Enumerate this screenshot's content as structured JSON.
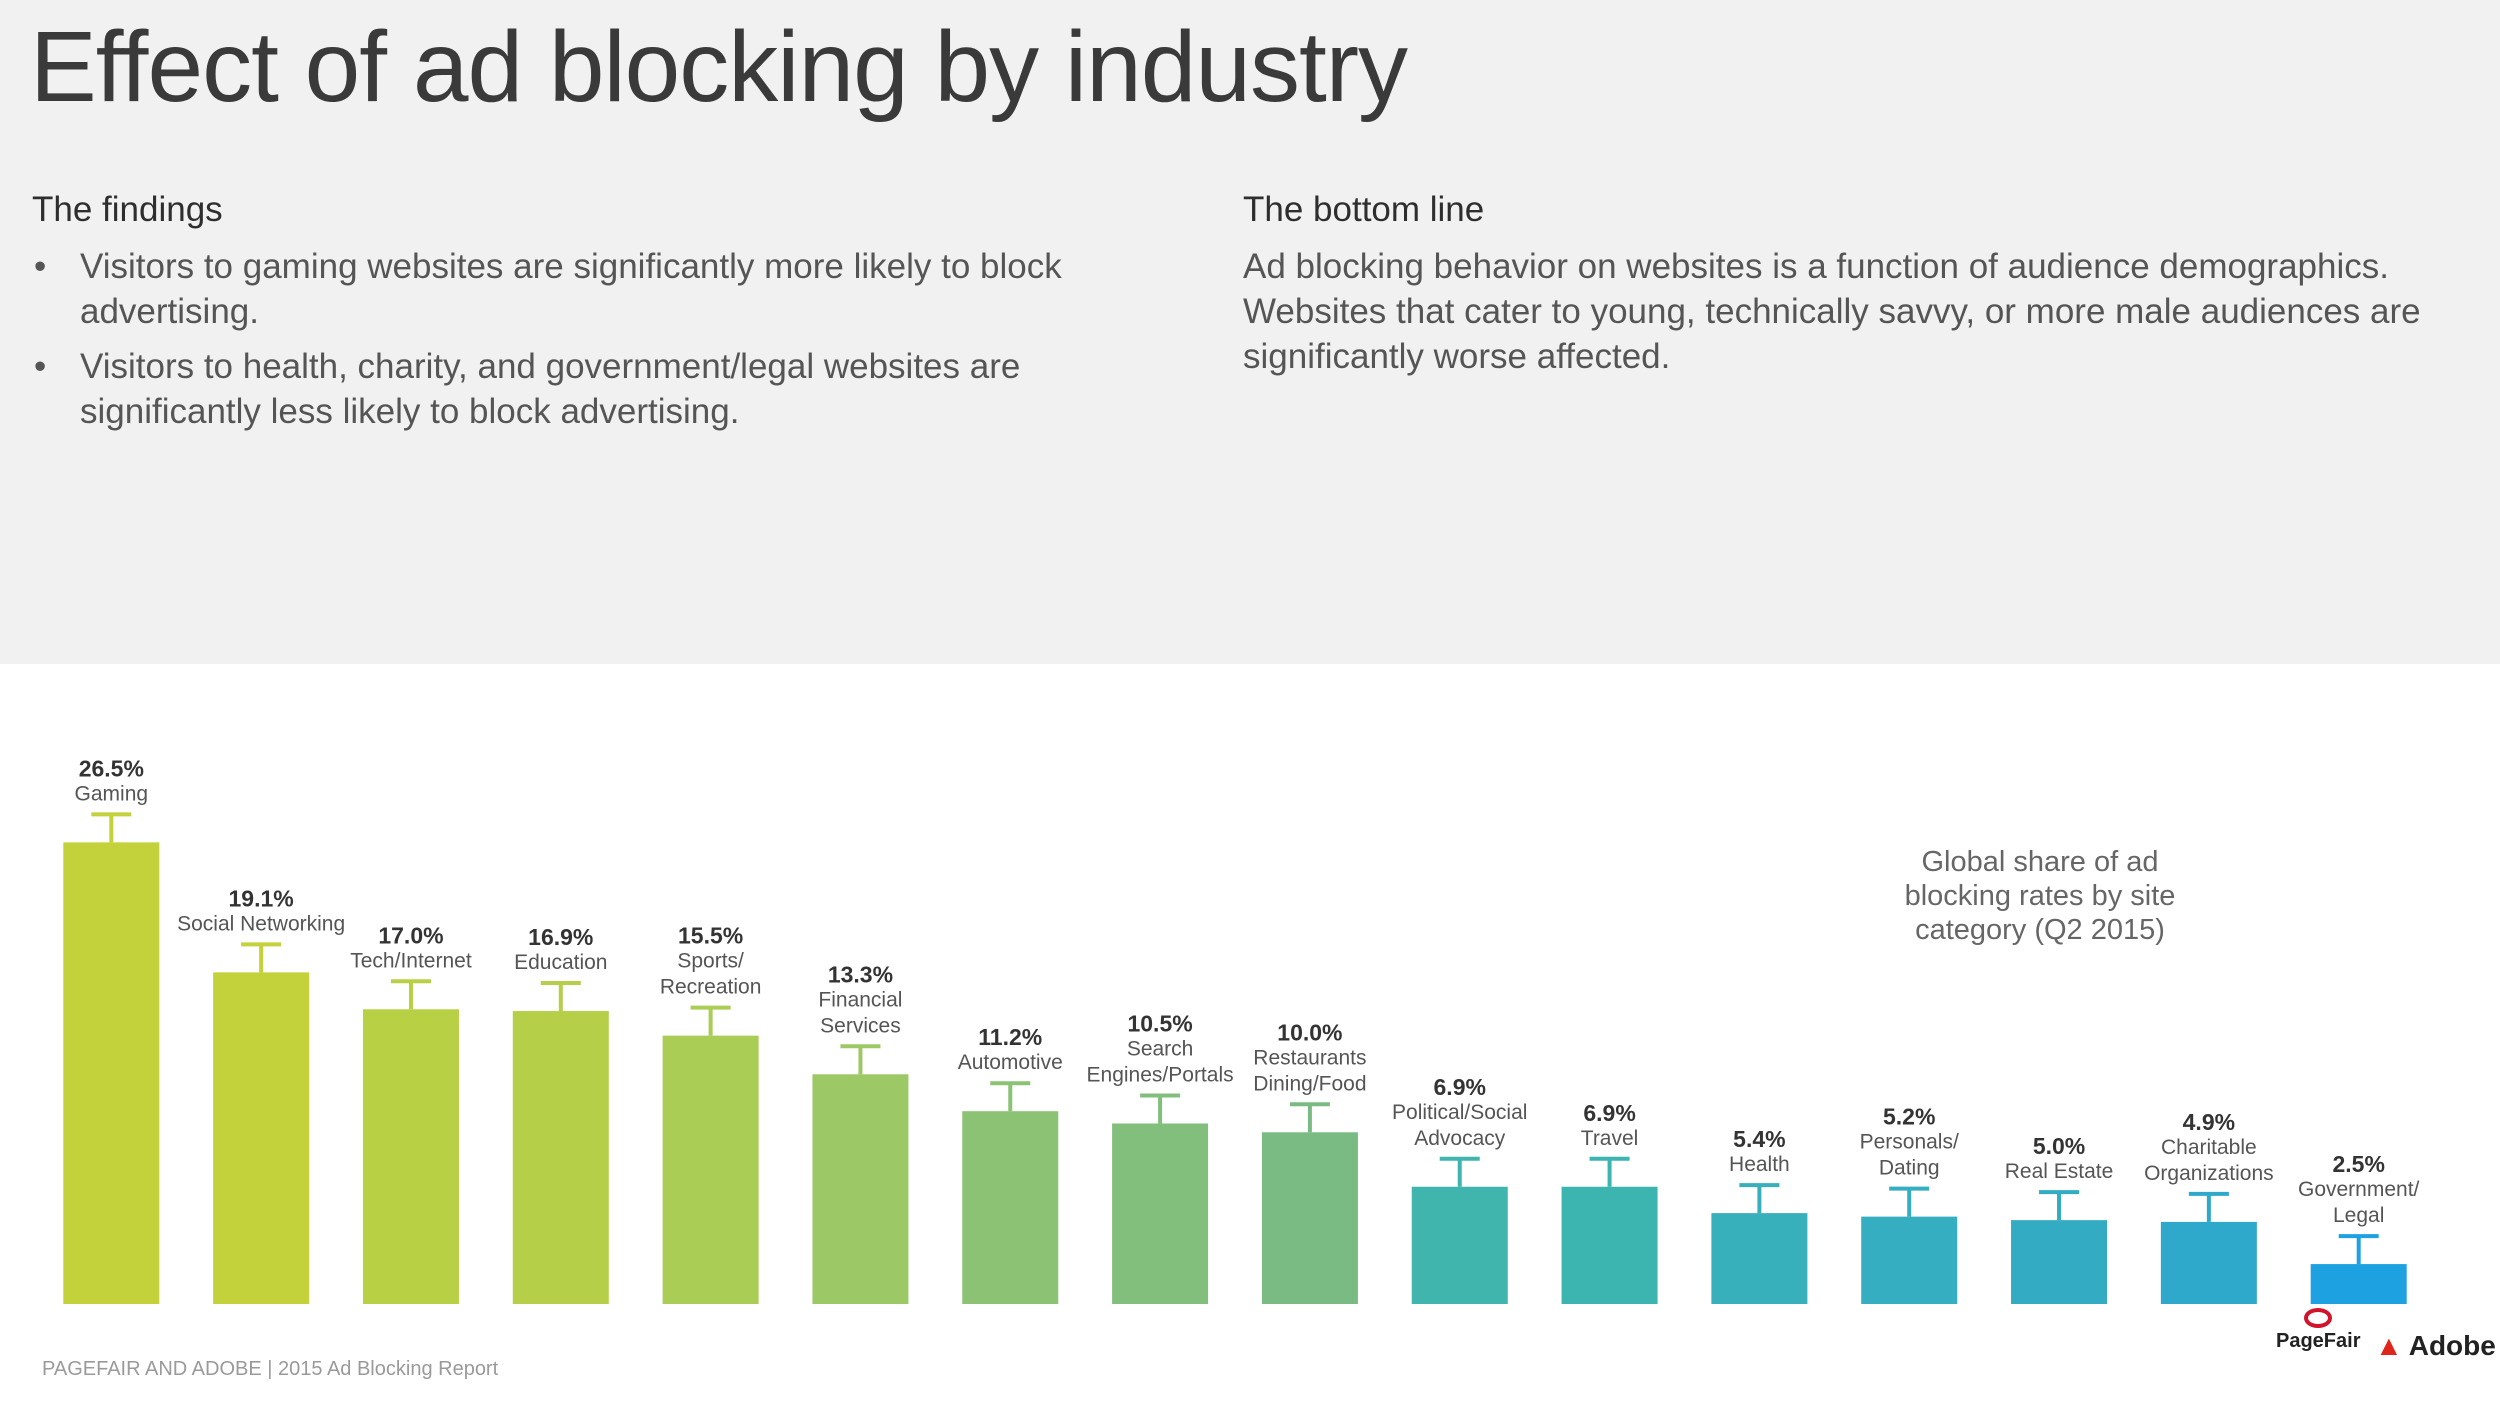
{
  "title": "Effect of ad blocking by industry",
  "findings": {
    "heading": "The findings",
    "bullets": [
      "Visitors to gaming websites are significantly more likely to block advertising.",
      "Visitors to health, charity, and government/legal websites are significantly less likely to block advertising."
    ]
  },
  "bottom_line": {
    "heading": "The bottom line",
    "text": "Ad blocking behavior on websites is a function of audience demographics. Websites that cater to young, technically savvy, or more male audiences are significantly worse affected."
  },
  "chart_note": "Global share of ad blocking rates by site category (Q2 2015)",
  "footer": "PAGEFAIR AND ADOBE | 2015 Ad Blocking Report",
  "logos": {
    "pagefair": "PageFair",
    "adobe": "Adobe"
  },
  "chart_data": {
    "type": "bar",
    "categories": [
      "Gaming",
      "Social Networking",
      "Tech/Internet",
      "Education",
      "Sports/ Recreation",
      "Financial Services",
      "Automotive",
      "Search Engines/Portals",
      "Restaurants Dining/Food",
      "Political/Social Advocacy",
      "Travel",
      "Health",
      "Personals/ Dating",
      "Real Estate",
      "Charitable Organizations",
      "Government/ Legal"
    ],
    "category_lines": [
      [
        "Gaming"
      ],
      [
        "Social Networking"
      ],
      [
        "Tech/Internet"
      ],
      [
        "Education"
      ],
      [
        "Sports/",
        "Recreation"
      ],
      [
        "Financial",
        "Services"
      ],
      [
        "Automotive"
      ],
      [
        "Search",
        "Engines/Portals"
      ],
      [
        "Restaurants",
        "Dining/Food"
      ],
      [
        "Political/Social",
        "Advocacy"
      ],
      [
        "Travel"
      ],
      [
        "Health"
      ],
      [
        "Personals/",
        "Dating"
      ],
      [
        "Real Estate"
      ],
      [
        "Charitable",
        "Organizations"
      ],
      [
        "Government/",
        "Legal"
      ]
    ],
    "values": [
      26.5,
      19.1,
      17.0,
      16.9,
      15.5,
      13.3,
      11.2,
      10.5,
      10.0,
      6.9,
      6.9,
      5.4,
      5.2,
      5.0,
      4.9,
      2.5
    ],
    "labels": [
      "26.5%",
      "19.1%",
      "17.0%",
      "16.9%",
      "15.5%",
      "13.3%",
      "11.2%",
      "10.5%",
      "10.0%",
      "6.9%",
      "6.9%",
      "5.4%",
      "5.2%",
      "5.0%",
      "4.9%",
      "2.5%"
    ],
    "colors": [
      "#c3d13a",
      "#c3d13a",
      "#b8d044",
      "#b5cf48",
      "#aacd55",
      "#9cc865",
      "#8cc273",
      "#82be7c",
      "#7abb84",
      "#3fb5ad",
      "#3cb4b0",
      "#37b0bb",
      "#34aec0",
      "#32abc3",
      "#2ea8cb",
      "#1da1e1"
    ],
    "error_bars": true,
    "ylim": [
      0,
      28
    ],
    "grid": false,
    "legend": "none"
  }
}
